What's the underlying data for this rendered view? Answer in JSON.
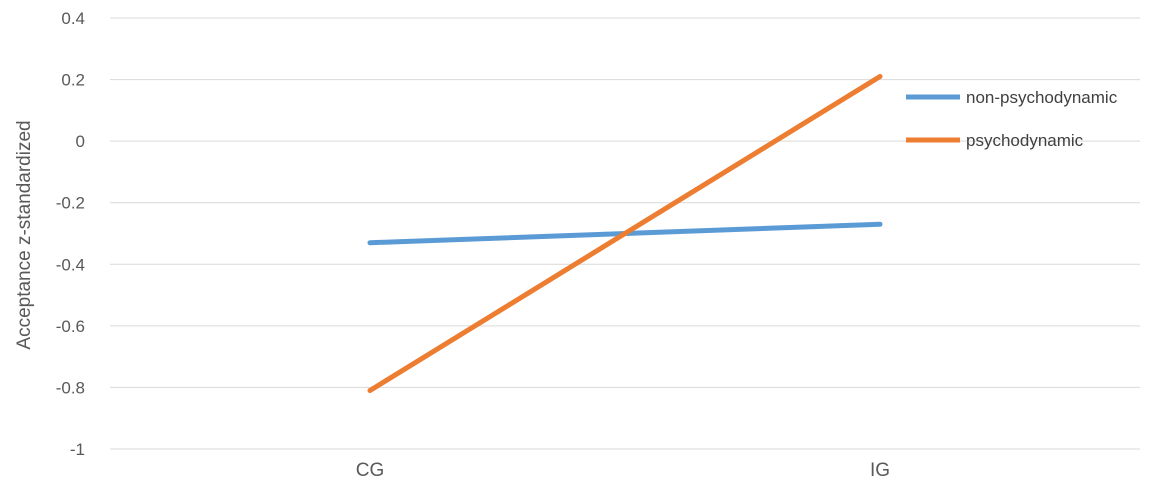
{
  "chart_data": {
    "type": "line",
    "categories": [
      "CG",
      "IG"
    ],
    "series": [
      {
        "name": "non-psychodynamic",
        "values": [
          -0.33,
          -0.27
        ],
        "color": "#5b9bd5"
      },
      {
        "name": "psychodynamic",
        "values": [
          -0.81,
          0.21
        ],
        "color": "#ed7d31"
      }
    ],
    "ylabel": "Acceptance z-standardized",
    "ylim": [
      -1,
      0.4
    ],
    "yticks": [
      0.4,
      0.2,
      0,
      -0.2,
      -0.4,
      -0.6,
      -0.8,
      -1
    ],
    "grid": true,
    "legend_position": "right"
  }
}
